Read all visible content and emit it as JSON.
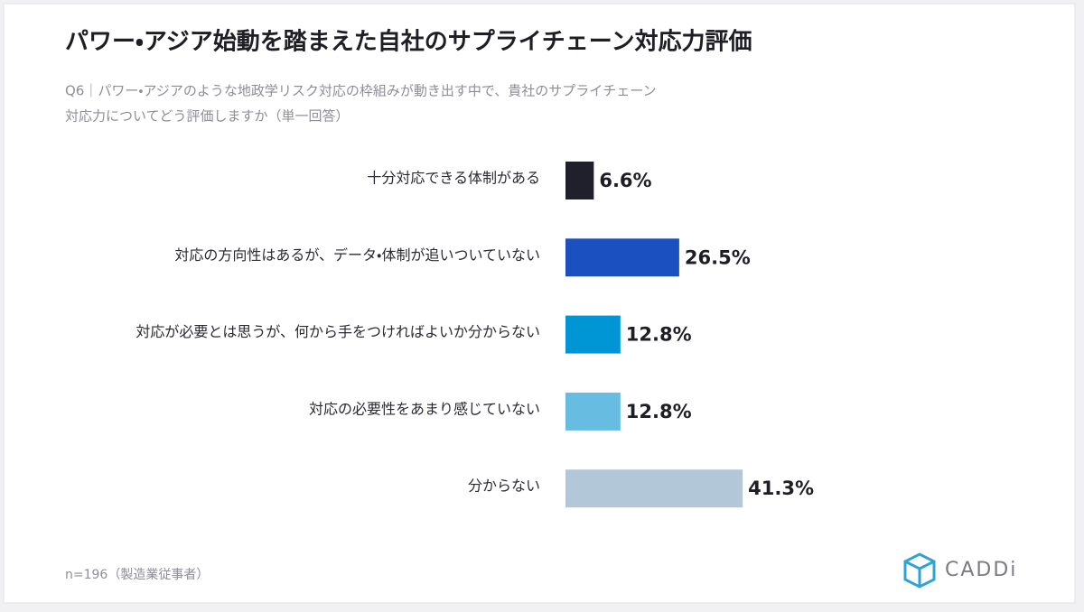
{
  "chart_data": {
    "type": "bar",
    "orientation": "horizontal",
    "title": "パワー・アジア始動を踏まえた自社のサプライチェーン対応力評価",
    "subtitle": [
      "Q6｜パワー・アジアのような地政学リスク対応の枠組みが動き出す中で、貴社のサプライチェーン",
      "対応力についてどう評価しますか（単一回答）"
    ],
    "categories": [
      "十分対応できる体制がある",
      "対応の方向性はあるが、データ・体制が追いついていない",
      "対応が必要とは思うが、何から手をつければよいか分からない",
      "対応の必要性をあまり感じていない",
      "分からない"
    ],
    "values": [
      6.6,
      26.5,
      12.8,
      12.8,
      41.3
    ],
    "value_labels": [
      "6.6%",
      "26.5%",
      "12.8%",
      "12.8%",
      "41.3%"
    ],
    "colors": [
      "#1f202c",
      "#1a50c0",
      "#0096d6",
      "#66bde1",
      "#b2c7d8"
    ],
    "note": "n=196（製造業従事者）",
    "logo": "CADDi"
  }
}
